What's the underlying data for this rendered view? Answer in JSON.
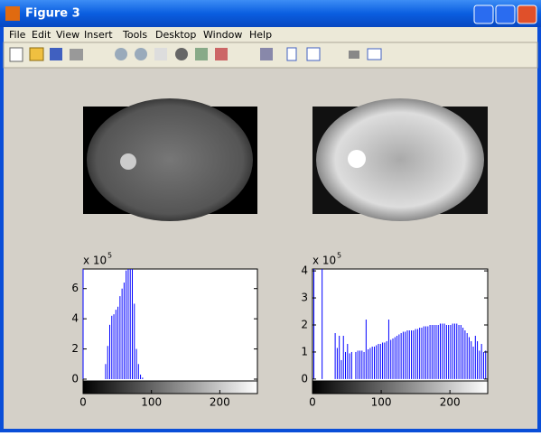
{
  "window": {
    "title": "Figure 3",
    "menu": [
      "File",
      "Edit",
      "View",
      "Insert",
      "Tools",
      "Desktop",
      "Window",
      "Help"
    ]
  },
  "chart_data": [
    {
      "type": "bar",
      "color": "#0000ff",
      "exponent_base": "x 10",
      "exponent": "5",
      "x": [
        0,
        33,
        36,
        39,
        42,
        45,
        48,
        51,
        54,
        57,
        60,
        63,
        66,
        69,
        72,
        75,
        78,
        81,
        84,
        87
      ],
      "values": [
        7.3,
        1.0,
        2.2,
        3.6,
        4.2,
        4.3,
        4.6,
        4.8,
        5.5,
        6.0,
        6.4,
        7.2,
        7.3,
        7.3,
        7.3,
        5.0,
        2.0,
        1.0,
        0.3,
        0.1
      ],
      "xlim": [
        0,
        255
      ],
      "ylim": [
        -0.12,
        7.3
      ],
      "xticks": [
        0,
        100,
        200
      ],
      "yticks": [
        0,
        2,
        4,
        6
      ]
    },
    {
      "type": "bar",
      "color": "#0000ff",
      "exponent_base": "x 10",
      "exponent": "5",
      "x": [
        2,
        14,
        33,
        36,
        39,
        42,
        45,
        48,
        51,
        54,
        57,
        63,
        66,
        69,
        72,
        75,
        78,
        81,
        84,
        87,
        90,
        93,
        96,
        99,
        102,
        105,
        108,
        111,
        114,
        117,
        120,
        123,
        126,
        129,
        132,
        135,
        138,
        141,
        144,
        147,
        150,
        153,
        156,
        159,
        162,
        165,
        168,
        171,
        174,
        177,
        180,
        183,
        186,
        189,
        192,
        195,
        198,
        201,
        204,
        207,
        210,
        213,
        216,
        219,
        222,
        225,
        228,
        231,
        234,
        237,
        240,
        243,
        246,
        249,
        252
      ],
      "values": [
        4.07,
        4.07,
        1.7,
        1.15,
        1.6,
        0.7,
        1.6,
        1.0,
        1.3,
        0.95,
        1.0,
        1.0,
        1.05,
        1.05,
        1.05,
        1.0,
        2.2,
        1.1,
        1.15,
        1.2,
        1.2,
        1.25,
        1.3,
        1.3,
        1.35,
        1.35,
        1.4,
        2.2,
        1.45,
        1.5,
        1.55,
        1.6,
        1.65,
        1.7,
        1.75,
        1.75,
        1.8,
        1.8,
        1.8,
        1.8,
        1.85,
        1.85,
        1.9,
        1.9,
        1.95,
        1.95,
        1.95,
        2.0,
        2.0,
        2.0,
        2.0,
        2.0,
        2.05,
        2.05,
        2.05,
        2.0,
        2.0,
        2.0,
        2.05,
        2.05,
        2.05,
        2.0,
        2.0,
        1.9,
        1.8,
        1.7,
        1.55,
        1.4,
        1.2,
        1.6,
        1.4,
        1.05,
        1.3,
        1.0,
        1.05
      ],
      "xlim": [
        0,
        255
      ],
      "ylim": [
        -0.07,
        4.07
      ],
      "xticks": [
        0,
        100,
        200
      ],
      "yticks": [
        0,
        1,
        2,
        3,
        4
      ]
    }
  ]
}
